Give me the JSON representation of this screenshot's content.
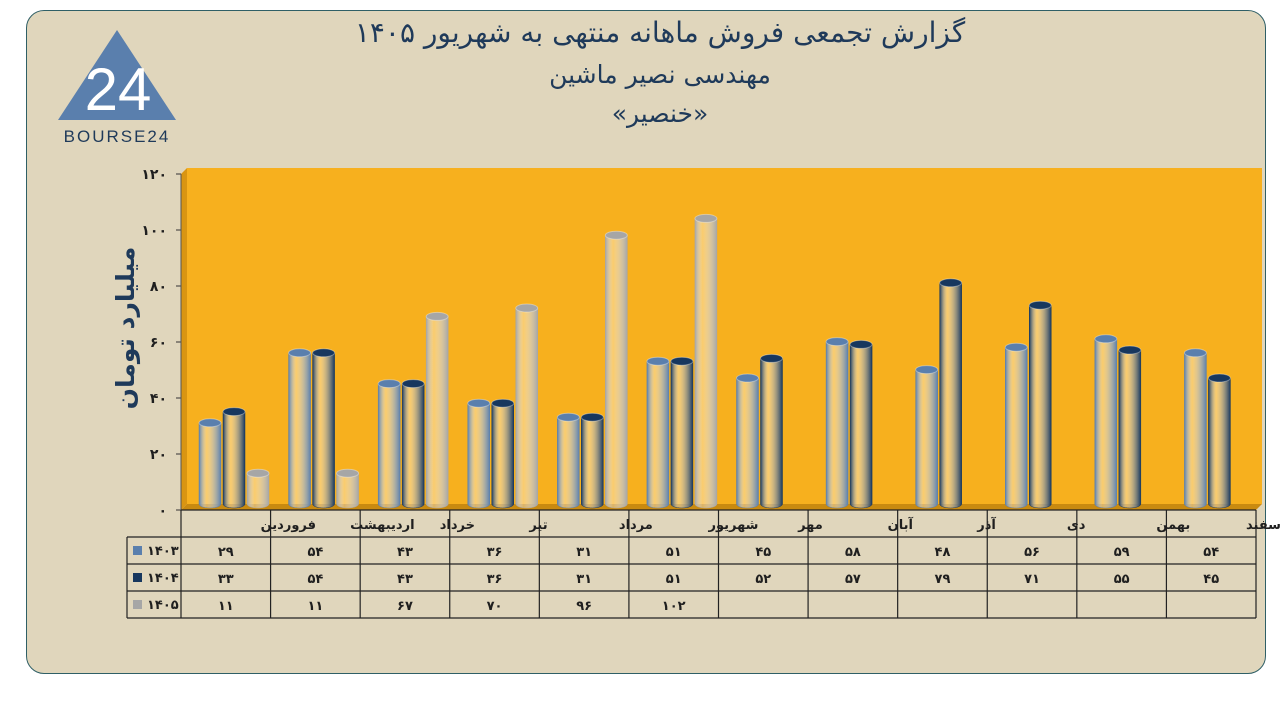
{
  "title_line1": "گزارش تجمعی فروش ماهانه منتهی به شهریور ۱۴۰۵",
  "title_line2": "مهندسی نصیر ماشین",
  "title_line3": "«خنصیر»",
  "logo": {
    "mark": "24",
    "text": "BOURSE24"
  },
  "colors": {
    "plot_bg": "#f7b01e",
    "panel_bg": "#e0d6bc",
    "panel_border": "#2f5f66",
    "title": "#1f3a5a",
    "s1403": "#5a7fad",
    "s1404": "#17375e",
    "s1405": "#a6a6a6"
  },
  "chart_data": {
    "type": "bar",
    "ylabel": "میلیارد تومان",
    "ylim": [
      0,
      120
    ],
    "yticks": [
      "۰",
      "۲۰",
      "۴۰",
      "۶۰",
      "۸۰",
      "۱۰۰",
      "۱۲۰"
    ],
    "ytick_values": [
      0,
      20,
      40,
      60,
      80,
      100,
      120
    ],
    "categories": [
      "فروردین",
      "اردیبهشت",
      "خرداد",
      "تیر",
      "مرداد",
      "شهریور",
      "مهر",
      "آبان",
      "آذر",
      "دی",
      "بهمن",
      "اسفند"
    ],
    "grid": false,
    "legend_placement": "data-table-left",
    "series": [
      {
        "name": "۱۴۰۳",
        "values": [
          29,
          54,
          43,
          36,
          31,
          51,
          45,
          58,
          48,
          56,
          59,
          54
        ],
        "labels": [
          "۲۹",
          "۵۴",
          "۴۳",
          "۳۶",
          "۳۱",
          "۵۱",
          "۴۵",
          "۵۸",
          "۴۸",
          "۵۶",
          "۵۹",
          "۵۴"
        ]
      },
      {
        "name": "۱۴۰۴",
        "values": [
          33,
          54,
          43,
          36,
          31,
          51,
          52,
          57,
          79,
          71,
          55,
          45
        ],
        "labels": [
          "۳۳",
          "۵۴",
          "۴۳",
          "۳۶",
          "۳۱",
          "۵۱",
          "۵۲",
          "۵۷",
          "۷۹",
          "۷۱",
          "۵۵",
          "۴۵"
        ]
      },
      {
        "name": "۱۴۰۵",
        "values": [
          11,
          11,
          67,
          70,
          96,
          102,
          null,
          null,
          null,
          null,
          null,
          null
        ],
        "labels": [
          "۱۱",
          "۱۱",
          "۶۷",
          "۷۰",
          "۹۶",
          "۱۰۲",
          "",
          "",
          "",
          "",
          "",
          ""
        ]
      }
    ]
  }
}
